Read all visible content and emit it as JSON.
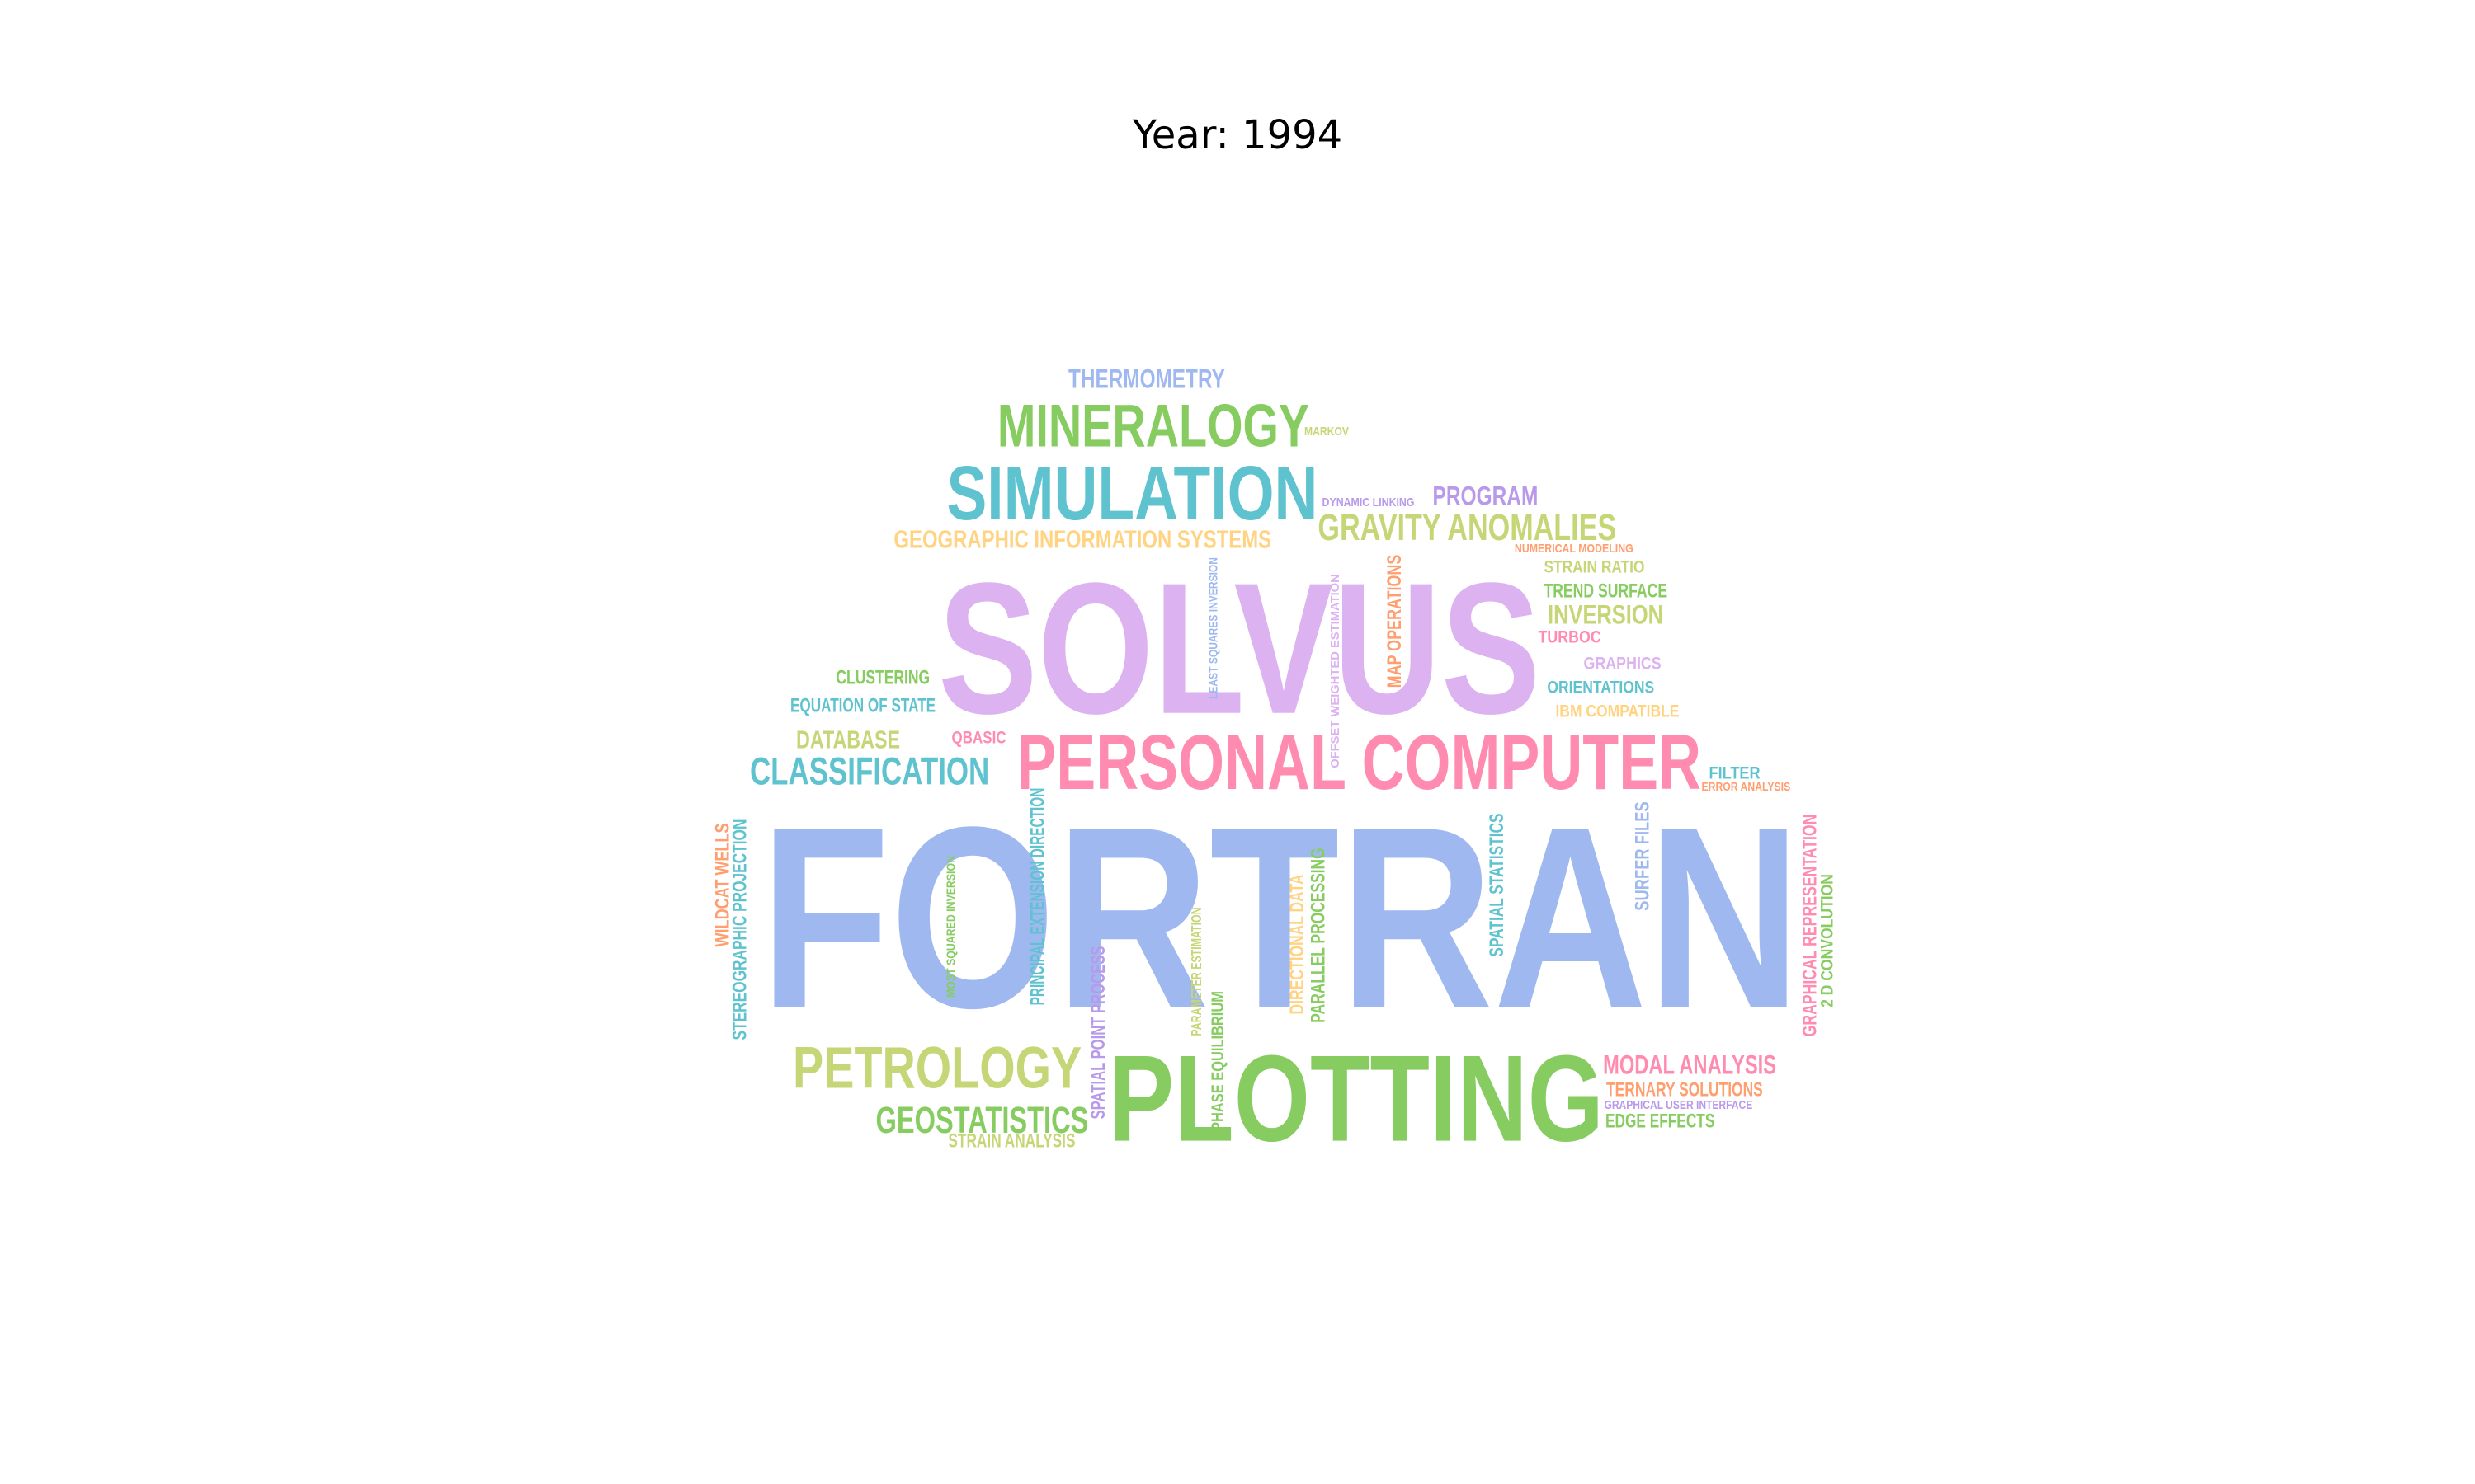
{
  "title": "Year: 1994",
  "colors": {
    "blue": "#9fb9f0",
    "green": "#87cc60",
    "pink": "#ff8cb0",
    "lavender": "#dcb2f0",
    "teal": "#5fc3cf",
    "olive": "#c5d676",
    "gold": "#ffd382",
    "orange": "#ff9e6e",
    "purple": "#b99aea"
  },
  "words": [
    {
      "id": "fortran",
      "text": "FORTRAN",
      "color": "blue"
    },
    {
      "id": "solvus",
      "text": "SOLVUS",
      "color": "lavender"
    },
    {
      "id": "plotting",
      "text": "PLOTTING",
      "color": "green"
    },
    {
      "id": "personal-computer",
      "text": "PERSONAL COMPUTER",
      "color": "pink"
    },
    {
      "id": "simulation",
      "text": "SIMULATION",
      "color": "teal"
    },
    {
      "id": "mineralogy",
      "text": "MINERALOGY",
      "color": "green"
    },
    {
      "id": "petrology",
      "text": "PETROLOGY",
      "color": "olive"
    },
    {
      "id": "classification",
      "text": "CLASSIFICATION",
      "color": "teal"
    },
    {
      "id": "gravity-anomalies",
      "text": "GRAVITY ANOMALIES",
      "color": "olive"
    },
    {
      "id": "geostatistics",
      "text": "GEOSTATISTICS",
      "color": "green"
    },
    {
      "id": "thermometry",
      "text": "THERMOMETRY",
      "color": "blue"
    },
    {
      "id": "geographic-information-systems",
      "text": "GEOGRAPHIC INFORMATION SYSTEMS",
      "color": "gold"
    },
    {
      "id": "program",
      "text": "PROGRAM",
      "color": "purple"
    },
    {
      "id": "inversion",
      "text": "INVERSION",
      "color": "olive"
    },
    {
      "id": "database",
      "text": "DATABASE",
      "color": "olive"
    },
    {
      "id": "modal-analysis",
      "text": "MODAL ANALYSIS",
      "color": "pink"
    },
    {
      "id": "ternary-solutions",
      "text": "TERNARY SOLUTIONS",
      "color": "orange"
    },
    {
      "id": "edge-effects",
      "text": "EDGE EFFECTS",
      "color": "green"
    },
    {
      "id": "strain-analysis",
      "text": "STRAIN ANALYSIS",
      "color": "olive"
    },
    {
      "id": "clustering",
      "text": "CLUSTERING",
      "color": "green"
    },
    {
      "id": "equation-of-state",
      "text": "EQUATION OF STATE",
      "color": "teal"
    },
    {
      "id": "qbasic",
      "text": "QBASIC",
      "color": "pink"
    },
    {
      "id": "strain-ratio",
      "text": "STRAIN RATIO",
      "color": "olive"
    },
    {
      "id": "trend-surface",
      "text": "TREND SURFACE",
      "color": "green"
    },
    {
      "id": "turboc",
      "text": "TURBOC",
      "color": "pink"
    },
    {
      "id": "graphics",
      "text": "GRAPHICS",
      "color": "lavender"
    },
    {
      "id": "orientations",
      "text": "ORIENTATIONS",
      "color": "teal"
    },
    {
      "id": "ibm-compatible",
      "text": "IBM COMPATIBLE",
      "color": "gold"
    },
    {
      "id": "filter",
      "text": "FILTER",
      "color": "teal"
    },
    {
      "id": "error-analysis",
      "text": "ERROR ANALYSIS",
      "color": "orange"
    },
    {
      "id": "numerical-modeling",
      "text": "NUMERICAL MODELING",
      "color": "orange"
    },
    {
      "id": "dynamic-linking",
      "text": "DYNAMIC LINKING",
      "color": "purple"
    },
    {
      "id": "markov",
      "text": "MARKOV",
      "color": "olive"
    },
    {
      "id": "graphical-user-interface",
      "text": "GRAPHICAL USER INTERFACE",
      "color": "purple"
    },
    {
      "id": "map-operations",
      "text": "MAP OPERATIONS",
      "color": "orange"
    },
    {
      "id": "least-squares-inversion",
      "text": "LEAST SQUARES INVERSION",
      "color": "blue"
    },
    {
      "id": "offset-weighted-estimation",
      "text": "OFFSET WEIGHTED ESTIMATION",
      "color": "lavender"
    },
    {
      "id": "wildcat-wells",
      "text": "WILDCAT WELLS",
      "color": "orange"
    },
    {
      "id": "stereographic-projection",
      "text": "STEREOGRAPHIC PROJECTION",
      "color": "teal"
    },
    {
      "id": "most-squared-inversion",
      "text": "MOST SQUARED INVERSION",
      "color": "green"
    },
    {
      "id": "principal-extension-direction",
      "text": "PRINCIPAL EXTENSION DIRECTION",
      "color": "teal"
    },
    {
      "id": "spatial-point-process",
      "text": "SPATIAL POINT PROCESS",
      "color": "purple"
    },
    {
      "id": "parameter-estimation",
      "text": "PARAMETER ESTIMATION",
      "color": "olive"
    },
    {
      "id": "phase-equilibrium",
      "text": "PHASE EQUILIBRIUM",
      "color": "green"
    },
    {
      "id": "directional-data",
      "text": "DIRECTIONAL DATA",
      "color": "gold"
    },
    {
      "id": "parallel-processing",
      "text": "PARALLEL PROCESSING",
      "color": "green"
    },
    {
      "id": "spatial-statistics",
      "text": "SPATIAL STATISTICS",
      "color": "teal"
    },
    {
      "id": "surfer-files",
      "text": "SURFER FILES",
      "color": "blue"
    },
    {
      "id": "graphical-representation",
      "text": "GRAPHICAL REPRESENTATION",
      "color": "pink"
    },
    {
      "id": "2d-convolution",
      "text": "2 D CONVOLUTION",
      "color": "green"
    }
  ]
}
